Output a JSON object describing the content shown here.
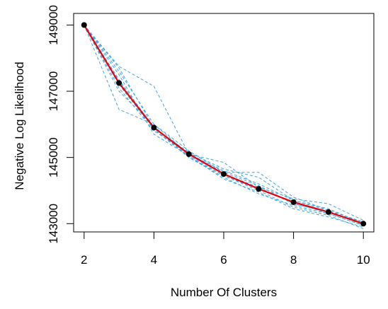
{
  "chart_data": {
    "type": "line",
    "title": "",
    "xlabel": "Number Of Clusters",
    "ylabel": "Negative Log Likelihood",
    "xlim": [
      1.7,
      10.3
    ],
    "ylim": [
      142750,
      149350
    ],
    "grid": false,
    "legend": "none",
    "x_ticks": [
      2,
      4,
      6,
      8,
      10
    ],
    "x_tick_labels": [
      "2",
      "4",
      "6",
      "8",
      "10"
    ],
    "y_ticks": [
      143000,
      145000,
      147000,
      149000
    ],
    "y_tick_labels": [
      "143000",
      "145000",
      "147000",
      "149000"
    ],
    "x": [
      2,
      3,
      4,
      5,
      6,
      7,
      8,
      9,
      10
    ],
    "mean_series": {
      "color": "#e8000b",
      "marker_color": "#000000",
      "values": [
        149000,
        147250,
        145900,
        145100,
        144500,
        144050,
        143650,
        143350,
        143000
      ]
    },
    "run_series_color": "#3ba3e0",
    "run_series": [
      {
        "values": [
          149000,
          147750,
          147150,
          145100,
          144850,
          144100,
          143750,
          143600,
          143100
        ]
      },
      {
        "values": [
          149000,
          146450,
          146000,
          145100,
          144550,
          144550,
          143800,
          143400,
          143050
        ]
      },
      {
        "values": [
          149000,
          147700,
          145900,
          145150,
          144650,
          144400,
          143700,
          143400,
          142950
        ]
      },
      {
        "values": [
          149000,
          147300,
          145850,
          145050,
          144450,
          144000,
          143500,
          143250,
          142850
        ]
      },
      {
        "values": [
          149000,
          147000,
          145950,
          145000,
          144400,
          143900,
          143550,
          143300,
          142950
        ]
      },
      {
        "values": [
          149000,
          147100,
          145800,
          145150,
          144500,
          144100,
          143600,
          143350,
          143050
        ]
      },
      {
        "values": [
          149000,
          147500,
          145700,
          145050,
          144350,
          143950,
          143450,
          143200,
          142900
        ]
      },
      {
        "values": [
          149000,
          147350,
          145900,
          145100,
          144600,
          144200,
          143700,
          143450,
          143000
        ]
      },
      {
        "values": [
          149000,
          147200,
          145850,
          145000,
          144450,
          144050,
          143650,
          143300,
          142950
        ]
      },
      {
        "values": [
          149000,
          147600,
          146000,
          145200,
          144550,
          144150,
          143600,
          143350,
          143000
        ]
      }
    ]
  }
}
